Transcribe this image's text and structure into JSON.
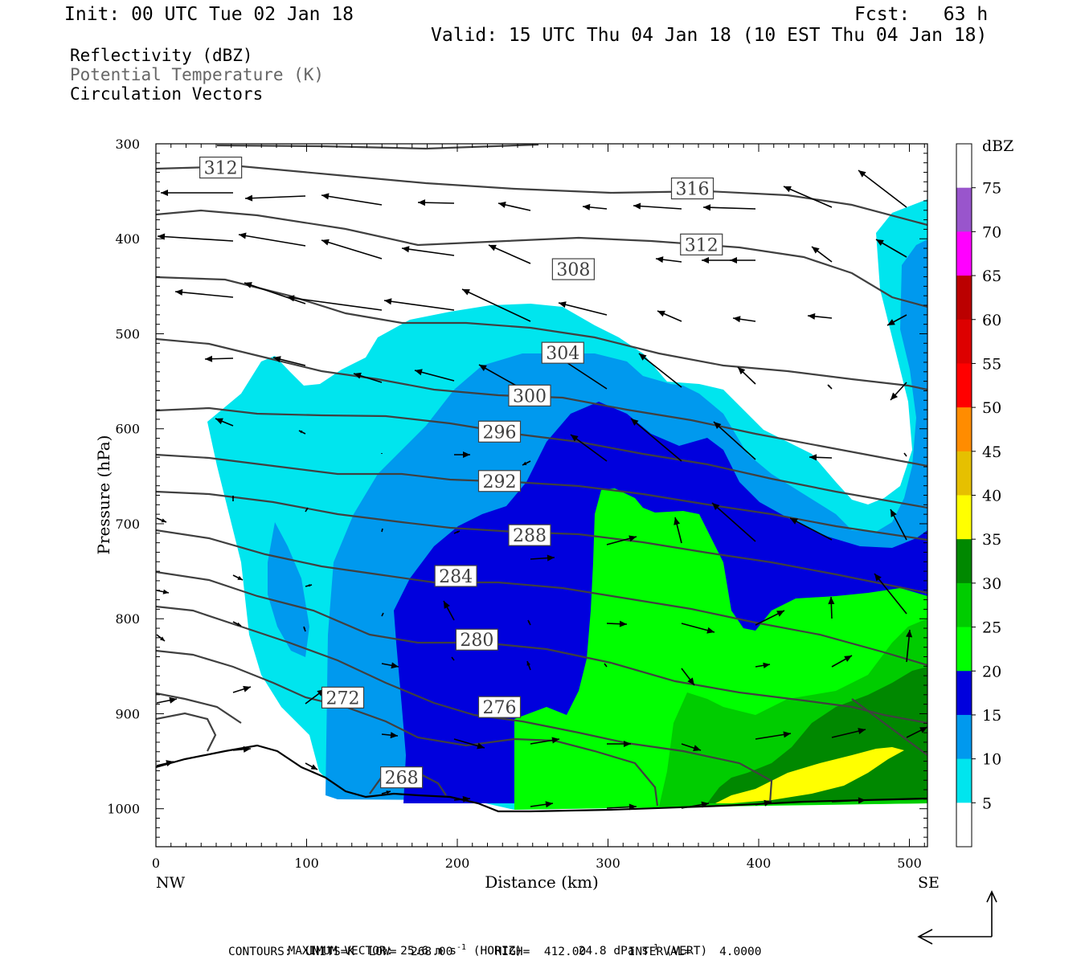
{
  "header": {
    "init": "Init: 00 UTC Tue 02 Jan 18",
    "fcst": "Fcst:   63 h",
    "valid": "Valid: 15 UTC Thu 04 Jan 18 (10 EST Thu 04 Jan 18)",
    "field1": "Reflectivity (dBZ)",
    "field2": "Potential Temperature (K)",
    "field3": "Circulation Vectors"
  },
  "footer": {
    "max_vector_label": "MAXIMUM VECTOR:",
    "horiz_value": "25.6 m s",
    "horiz_suffix": " (HORIZ)",
    "vert_value": "24.8 dPa s",
    "vert_suffix": " (VERT)",
    "exp": "-1",
    "contours": "CONTOURS:  UNITS=K  LOW=  268.00      HIGH=  412.00      INTERVAL=    4.0000"
  },
  "chart_data": {
    "type": "heatmap",
    "xlabel": "Distance (km)",
    "ylabel": "Pressure (hPa)",
    "x_ticks": [
      "0",
      "100",
      "200",
      "300",
      "400",
      "500"
    ],
    "y_ticks": [
      "300",
      "400",
      "500",
      "600",
      "700",
      "800",
      "900",
      "1000"
    ],
    "xlim": [
      0,
      512
    ],
    "ylim": [
      1040,
      300
    ],
    "x_end_labels": {
      "left": "NW",
      "right": "SE"
    },
    "colorbar": {
      "title": "dBZ",
      "labels": [
        "5",
        "10",
        "15",
        "20",
        "25",
        "30",
        "35",
        "40",
        "45",
        "50",
        "55",
        "60",
        "65",
        "70",
        "75"
      ],
      "colors": [
        "#ffffff",
        "#00e5ee",
        "#0099ee",
        "#0000dd",
        "#00ff00",
        "#00cc00",
        "#008800",
        "#ffff00",
        "#e6c000",
        "#ff8c00",
        "#ff0000",
        "#dd0000",
        "#bb0000",
        "#ff00ff",
        "#9955cc",
        "#ffffff"
      ]
    },
    "theta_contours": {
      "units": "K",
      "low": 268,
      "high": 412,
      "interval": 4,
      "labels": [
        {
          "value": "312",
          "x": 43,
          "p": 325
        },
        {
          "value": "316",
          "x": 356,
          "p": 347
        },
        {
          "value": "312",
          "x": 362,
          "p": 406
        },
        {
          "value": "308",
          "x": 277,
          "p": 432
        },
        {
          "value": "304",
          "x": 270,
          "p": 520
        },
        {
          "value": "300",
          "x": 248,
          "p": 565
        },
        {
          "value": "296",
          "x": 228,
          "p": 603
        },
        {
          "value": "292",
          "x": 228,
          "p": 655
        },
        {
          "value": "288",
          "x": 248,
          "p": 712
        },
        {
          "value": "284",
          "x": 199,
          "p": 755
        },
        {
          "value": "280",
          "x": 213,
          "p": 822
        },
        {
          "value": "276",
          "x": 228,
          "p": 893
        },
        {
          "value": "272",
          "x": 124,
          "p": 883
        },
        {
          "value": "268",
          "x": 163,
          "p": 967
        }
      ]
    },
    "colors": {
      "contour": "#404040",
      "terrain": "#000000"
    }
  }
}
